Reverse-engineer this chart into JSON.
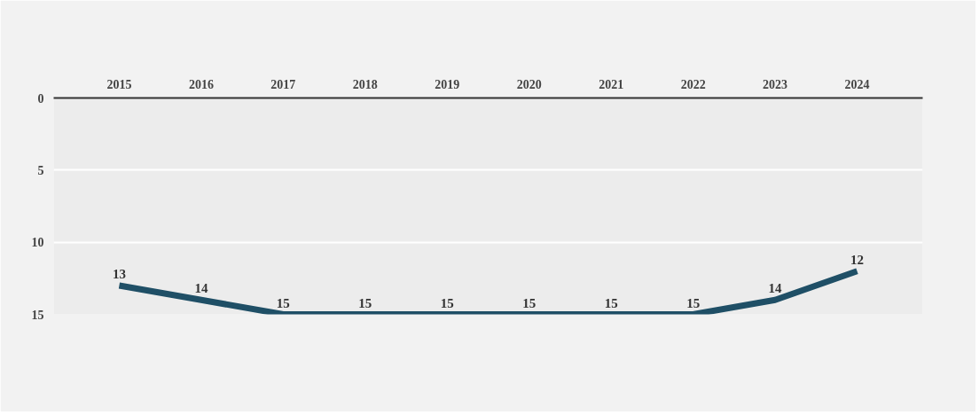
{
  "chart_data": {
    "type": "line",
    "categories": [
      "2015",
      "2016",
      "2017",
      "2018",
      "2019",
      "2020",
      "2021",
      "2022",
      "2023",
      "2024"
    ],
    "series": [
      {
        "color": "#1f4f66",
        "values": [
          13,
          14,
          15,
          15,
          15,
          15,
          15,
          15,
          14,
          12
        ]
      }
    ],
    "ylim": [
      15,
      0
    ],
    "yticks": [
      0,
      5,
      10,
      15
    ],
    "grid": "y",
    "data_labels": true,
    "marker": "none",
    "line_style": "solid"
  }
}
